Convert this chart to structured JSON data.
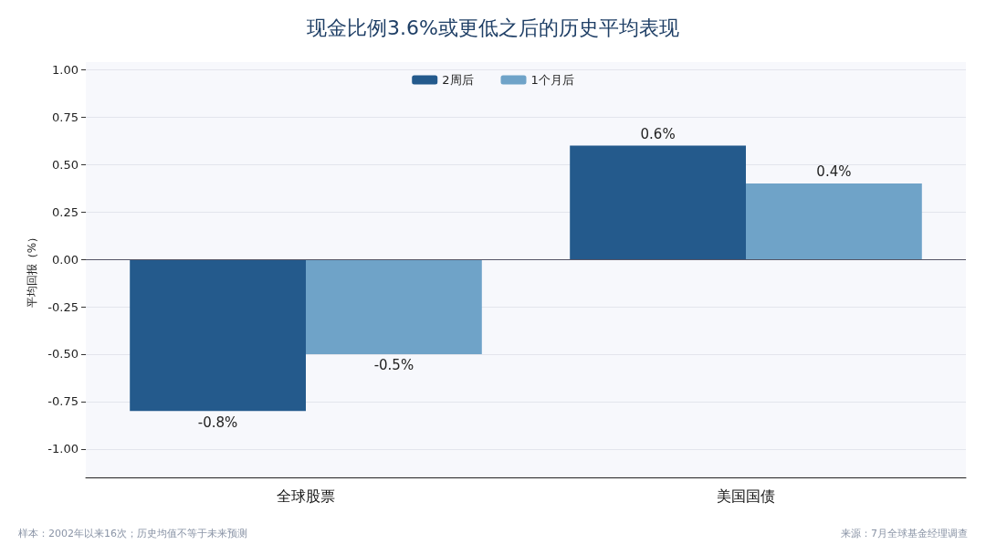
{
  "chart_data": {
    "type": "bar",
    "title": "现金比例3.6%或更低之后的历史平均表现",
    "ylabel": "平均回报（%）",
    "categories": [
      "全球股票",
      "美国国债"
    ],
    "series": [
      {
        "name": "2周后",
        "color": "#245a8c",
        "values": [
          -0.8,
          0.6
        ],
        "value_labels": [
          "-0.8%",
          "0.6%"
        ]
      },
      {
        "name": "1个月后",
        "color": "#6fa3c8",
        "values": [
          -0.5,
          0.4
        ],
        "value_labels": [
          "-0.5%",
          "0.4%"
        ]
      }
    ],
    "ylim": [
      -1.15,
      1.04
    ],
    "yticks": [
      {
        "value": -1,
        "label": "-1.00"
      },
      {
        "value": -0.75,
        "label": "-0.75"
      },
      {
        "value": -0.5,
        "label": "-0.50"
      },
      {
        "value": -0.25,
        "label": "-0.25"
      },
      {
        "value": 0,
        "label": "0.00"
      },
      {
        "value": 0.25,
        "label": "0.25"
      },
      {
        "value": 0.5,
        "label": "0.50"
      },
      {
        "value": 0.75,
        "label": "0.75"
      },
      {
        "value": 1,
        "label": "1.00"
      }
    ],
    "ref_lines": [
      {
        "axis": "y",
        "value": 0,
        "color": "#555566"
      }
    ],
    "grid": "y",
    "legend": "top",
    "annotations": [
      "样本：2002年以来16次；历史均值不等于未来预测",
      "来源：7月全球基金经理调查"
    ]
  }
}
